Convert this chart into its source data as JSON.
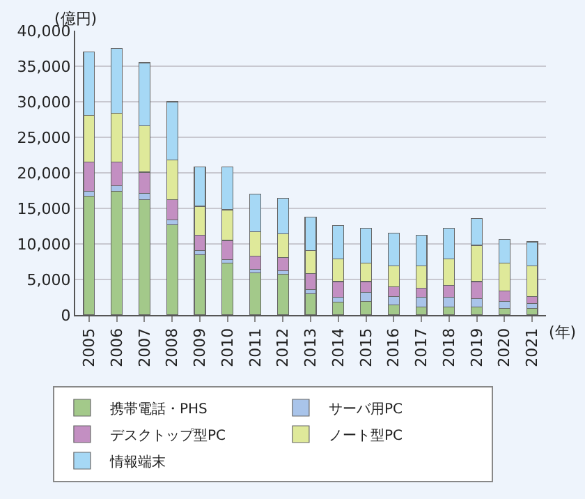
{
  "chart_data": {
    "type": "bar",
    "stacked": true,
    "xlabel": "(年)",
    "ylabel": "(億円)",
    "categories": [
      "2005",
      "2006",
      "2007",
      "2008",
      "2009",
      "2010",
      "2011",
      "2012",
      "2013",
      "2014",
      "2015",
      "2016",
      "2017",
      "2018",
      "2019",
      "2020",
      "2021"
    ],
    "series": [
      {
        "name": "携帯電話・PHS",
        "color": "#a3c98a",
        "values": [
          16700,
          17400,
          16200,
          12700,
          8500,
          7300,
          5900,
          5700,
          3000,
          1800,
          1900,
          1400,
          1100,
          1100,
          1100,
          900,
          900
        ]
      },
      {
        "name": "サーバ用PC",
        "color": "#a9c4ea",
        "values": [
          700,
          800,
          900,
          700,
          600,
          500,
          500,
          500,
          600,
          700,
          1300,
          1200,
          1400,
          1400,
          1200,
          1000,
          700
        ]
      },
      {
        "name": "デスクトップ型PC",
        "color": "#c38fc2",
        "values": [
          4100,
          3300,
          3000,
          2800,
          2100,
          2700,
          1900,
          1900,
          2200,
          2200,
          1500,
          1400,
          1300,
          1700,
          2400,
          1500,
          1000
        ]
      },
      {
        "name": "ノート型PC",
        "color": "#dfe99a",
        "values": [
          6600,
          6900,
          6500,
          5600,
          4100,
          4300,
          3400,
          3300,
          3300,
          3200,
          2600,
          2900,
          3100,
          3700,
          5100,
          3900,
          4300
        ]
      },
      {
        "name": "情報端末",
        "color": "#a6d8f5",
        "values": [
          8900,
          9100,
          8900,
          8200,
          5500,
          6000,
          5300,
          5000,
          4700,
          4700,
          4900,
          4600,
          4300,
          4300,
          3800,
          3300,
          3400
        ]
      }
    ],
    "ylim": [
      0,
      40000
    ],
    "yticks": [
      {
        "value": 0,
        "label": "0"
      },
      {
        "value": 5000,
        "label": "5,000"
      },
      {
        "value": 10000,
        "label": "10,000"
      },
      {
        "value": 15000,
        "label": "15,000"
      },
      {
        "value": 20000,
        "label": "20,000"
      },
      {
        "value": 25000,
        "label": "25,000"
      },
      {
        "value": 30000,
        "label": "30,000"
      },
      {
        "value": 35000,
        "label": "35,000"
      },
      {
        "value": 40000,
        "label": "40,000"
      }
    ],
    "grid": "y",
    "legend": "bottom"
  }
}
